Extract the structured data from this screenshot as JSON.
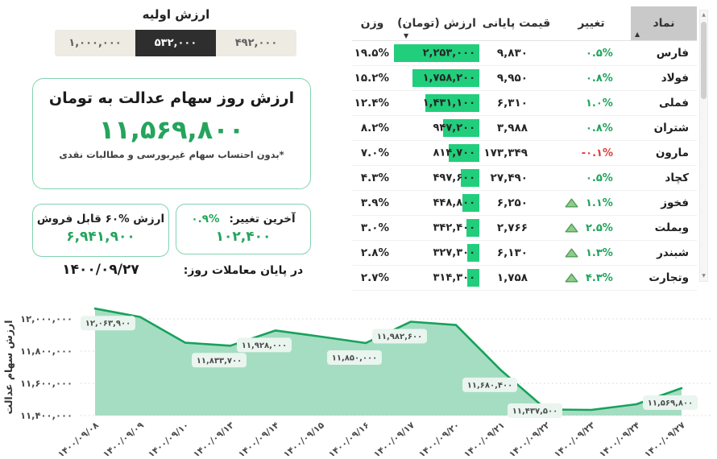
{
  "colors": {
    "accent_green": "#24a45c",
    "bar_green": "#21ce7c",
    "negative_red": "#e03a3a",
    "chart_line": "#18a15c",
    "chart_fill": "#a5ddc2",
    "box_border": "#82d2b0",
    "selected_segment_bg": "#2e2e2e",
    "segment_bg": "#edebe2",
    "header_cell_bg": "#c9c9c9",
    "label_pill_bg": "#e9f5ee"
  },
  "initial_value": {
    "title": "ارزش اولیه",
    "options": [
      {
        "label": "۱,۰۰۰,۰۰۰",
        "selected": false
      },
      {
        "label": "۵۳۲,۰۰۰",
        "selected": true
      },
      {
        "label": "۴۹۲,۰۰۰",
        "selected": false
      }
    ]
  },
  "main_card": {
    "title": "ارزش روز سهام عدالت به تومان",
    "value": "۱۱,۵۶۹,۸۰۰",
    "footnote": "*بدون احتساب سهام غیربورسی و مطالبات نقدی"
  },
  "change_card": {
    "label": "آخرین تغییر:",
    "percent": "۰.۹%",
    "value": "۱۰۲,۴۰۰",
    "caption": "در پایان معاملات روز:"
  },
  "sellable_card": {
    "label": "ارزش %۶۰ قابل فروش",
    "value": "۶,۹۴۱,۹۰۰",
    "caption": "۱۴۰۰/۰۹/۲۷"
  },
  "table": {
    "headers": {
      "symbol": "نماد",
      "change": "تغییر",
      "close_price": "قیمت پایانی",
      "value": "ارزش (تومان)",
      "weight": "وزن"
    },
    "sort_icons": {
      "symbol_asc": "▲",
      "value_desc": "▼"
    },
    "rows": [
      {
        "symbol": "فارس",
        "change": "۰.۵%",
        "negative": false,
        "arrow": false,
        "close_price": "۹,۸۳۰",
        "value": "۲,۲۵۳,۰۰۰",
        "weight": "۱۹.۵%"
      },
      {
        "symbol": "فولاد",
        "change": "۰.۸%",
        "negative": false,
        "arrow": false,
        "close_price": "۹,۹۵۰",
        "value": "۱,۷۵۸,۲۰۰",
        "weight": "۱۵.۲%"
      },
      {
        "symbol": "فملی",
        "change": "۱.۰%",
        "negative": false,
        "arrow": false,
        "close_price": "۶,۳۱۰",
        "value": "۱,۴۳۱,۱۰۰",
        "weight": "۱۲.۴%"
      },
      {
        "symbol": "شتران",
        "change": "۰.۸%",
        "negative": false,
        "arrow": false,
        "close_price": "۳,۹۸۸",
        "value": "۹۴۷,۲۰۰",
        "weight": "۸.۲%"
      },
      {
        "symbol": "مارون",
        "change": "-۰.۱%",
        "negative": true,
        "arrow": false,
        "close_price": "۱۷۳,۳۴۹",
        "value": "۸۱۴,۷۰۰",
        "weight": "۷.۰%"
      },
      {
        "symbol": "کچاد",
        "change": "۰.۵%",
        "negative": false,
        "arrow": false,
        "close_price": "۲۷,۴۹۰",
        "value": "۴۹۷,۶۰۰",
        "weight": "۴.۳%"
      },
      {
        "symbol": "فخوز",
        "change": "۱.۱%",
        "negative": false,
        "arrow": true,
        "close_price": "۶,۲۵۰",
        "value": "۴۴۸,۸۰۰",
        "weight": "۳.۹%"
      },
      {
        "symbol": "وبملت",
        "change": "۲.۵%",
        "negative": false,
        "arrow": true,
        "close_price": "۲,۷۶۶",
        "value": "۳۴۲,۴۰۰",
        "weight": "۳.۰%"
      },
      {
        "symbol": "شبندر",
        "change": "۱.۳%",
        "negative": false,
        "arrow": true,
        "close_price": "۶,۱۳۰",
        "value": "۳۲۷,۳۰۰",
        "weight": "۲.۸%"
      },
      {
        "symbol": "وتجارت",
        "change": "۴.۳%",
        "negative": false,
        "arrow": true,
        "close_price": "۱,۷۵۸",
        "value": "۳۱۴,۳۰۰",
        "weight": "۲.۷%"
      }
    ]
  },
  "chart_data": {
    "type": "area",
    "title": "",
    "ylabel": "ارزش سهام عدالت",
    "xlabel": "",
    "x": [
      "۱۴۰۰/۰۹/۰۸",
      "۱۴۰۰/۰۹/۰۹",
      "۱۴۰۰/۰۹/۱۰",
      "۱۴۰۰/۰۹/۱۳",
      "۱۴۰۰/۰۹/۱۴",
      "۱۴۰۰/۰۹/۱۵",
      "۱۴۰۰/۰۹/۱۶",
      "۱۴۰۰/۰۹/۱۷",
      "۱۴۰۰/۰۹/۲۰",
      "۱۴۰۰/۰۹/۲۱",
      "۱۴۰۰/۰۹/۲۲",
      "۱۴۰۰/۰۹/۲۳",
      "۱۴۰۰/۰۹/۲۴",
      "۱۴۰۰/۰۹/۲۷"
    ],
    "values": [
      12063900,
      12012000,
      11852000,
      11833700,
      11928000,
      11890000,
      11850000,
      11982600,
      11962000,
      11680400,
      11437500,
      11435000,
      11470000,
      11569800
    ],
    "point_labels": [
      "۱۲,۰۶۳,۹۰۰",
      null,
      null,
      "۱۱,۸۳۳,۷۰۰",
      "۱۱,۹۲۸,۰۰۰",
      null,
      "۱۱,۸۵۰,۰۰۰",
      "۱۱,۹۸۲,۶۰۰",
      null,
      "۱۱,۶۸۰,۴۰۰",
      "۱۱,۴۳۷,۵۰۰",
      null,
      null,
      "۱۱,۵۶۹,۸۰۰"
    ],
    "yticks": [
      {
        "value": 12000000,
        "label": "۱۲,۰۰۰,۰۰۰"
      },
      {
        "value": 11800000,
        "label": "۱۱,۸۰۰,۰۰۰"
      },
      {
        "value": 11600000,
        "label": "۱۱,۶۰۰,۰۰۰"
      },
      {
        "value": 11400000,
        "label": "۱۱,۴۰۰,۰۰۰"
      }
    ],
    "ylim": [
      11400000,
      12100000
    ],
    "grid": "dotted-horizontal",
    "legend": "none"
  }
}
